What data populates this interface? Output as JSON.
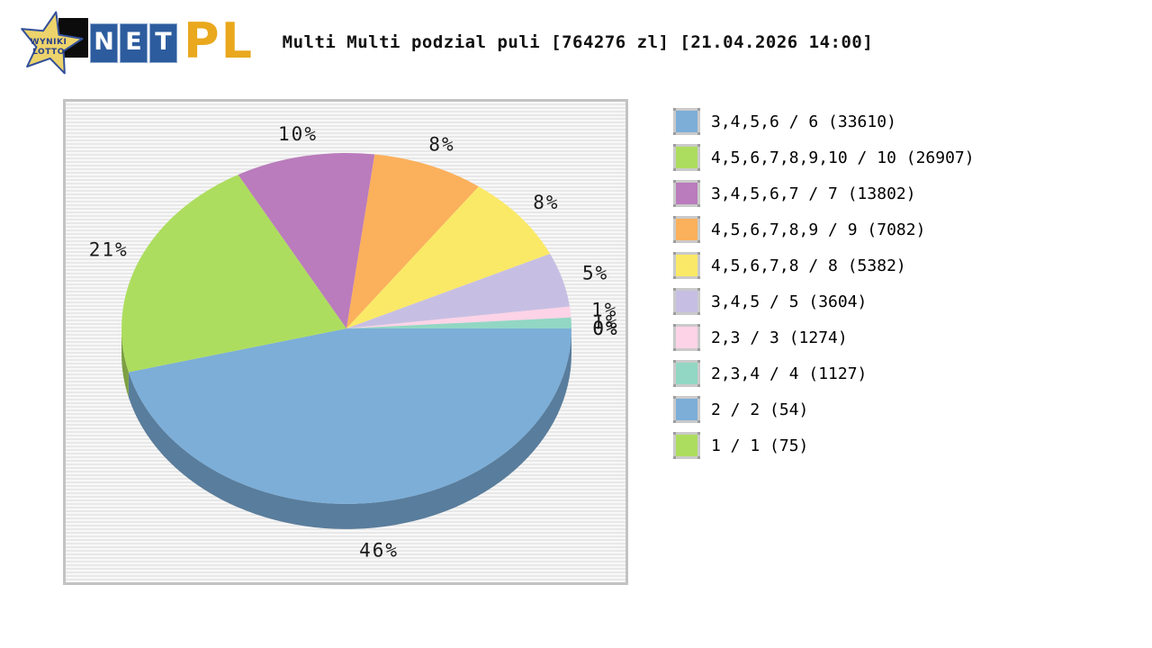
{
  "logo": {
    "star_line1": "WYNIKI",
    "star_line2": "LOTTO",
    "net_letters": [
      "N",
      "E",
      "T"
    ],
    "pl": "PL"
  },
  "title": "Multi Multi podzial puli [764276 zl] [21.04.2026 14:00]",
  "chart_data": {
    "type": "pie",
    "three_d": true,
    "start_angle_deg": 0,
    "direction": "clockwise",
    "title": "Multi Multi podzial puli [764276 zl] [21.04.2026 14:00]",
    "legend_position": "right",
    "plot_background": "horizontal light-gray stripes",
    "slices": [
      {
        "label": "3,4,5,6 / 6 (33610)",
        "winners": 33610,
        "percent": 46,
        "percent_label": "46%",
        "color": "#7caed8"
      },
      {
        "label": "4,5,6,7,8,9,10 / 10 (26907)",
        "winners": 26907,
        "percent": 21,
        "percent_label": "21%",
        "color": "#addd5e"
      },
      {
        "label": "3,4,5,6,7 / 7 (13802)",
        "winners": 13802,
        "percent": 10,
        "percent_label": "10%",
        "color": "#ba7cbc"
      },
      {
        "label": "4,5,6,7,8,9 / 9 (7082)",
        "winners": 7082,
        "percent": 8,
        "percent_label": "8%",
        "color": "#fbb05c"
      },
      {
        "label": "4,5,6,7,8 / 8 (5382)",
        "winners": 5382,
        "percent": 8,
        "percent_label": "8%",
        "color": "#fae967"
      },
      {
        "label": "3,4,5 / 5 (3604)",
        "winners": 3604,
        "percent": 5,
        "percent_label": "5%",
        "color": "#c7bfe3"
      },
      {
        "label": "2,3 / 3 (1274)",
        "winners": 1274,
        "percent": 1,
        "percent_label": "1%",
        "color": "#fdd3e7"
      },
      {
        "label": "2,3,4 / 4 (1127)",
        "winners": 1127,
        "percent": 1,
        "percent_label": "1%",
        "color": "#92d7c3"
      },
      {
        "label": "2 / 2 (54)",
        "winners": 54,
        "percent": 0,
        "percent_label": "0%",
        "color": "#7caed8"
      },
      {
        "label": "1 / 1 (75)",
        "winners": 75,
        "percent": 0,
        "percent_label": "0%",
        "color": "#addd5e"
      }
    ]
  },
  "theme": {
    "panel_border": "#c3c3c3",
    "stripe_light": "#f8f8f8",
    "stripe_dark": "#e8e8e8",
    "title_color": "#111111",
    "label_color": "#1a1a1a",
    "net_bg": "#2d5c9e",
    "pl_color": "#e9a81d",
    "star_fill": "#edd36b",
    "star_stroke": "#33509a"
  }
}
